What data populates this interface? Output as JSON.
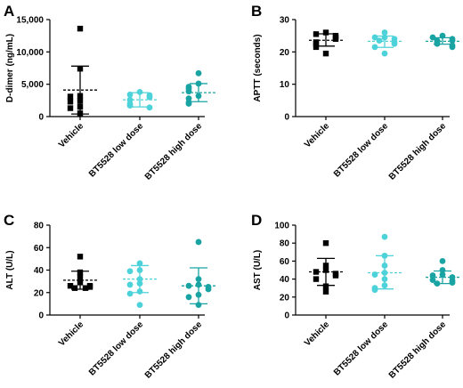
{
  "figure": {
    "group_colors": [
      "#000000",
      "#4dd2d9",
      "#1aa3a3"
    ],
    "group_markers": [
      "square",
      "circle",
      "circle"
    ]
  },
  "chart_data": [
    {
      "type": "scatter",
      "panel": "A",
      "categories": [
        "Vehicle",
        "BT5528 low dose",
        "BT5528 high dose"
      ],
      "ylabel": "D-dimer (ng/mL)",
      "ylim": [
        0,
        15000
      ],
      "yticks": [
        0,
        5000,
        10000,
        15000
      ],
      "ytick_labels": [
        "0",
        "5,000",
        "10,000",
        "15,000"
      ],
      "series": [
        {
          "points": [
            13600,
            7400,
            3200,
            3100,
            2400,
            2300,
            1500,
            1300,
            500
          ],
          "mean": 4100,
          "sd": [
            400,
            7800
          ]
        },
        {
          "points": [
            3800,
            3400,
            3300,
            3000,
            2600,
            2000,
            1700,
            1400
          ],
          "mean": 2600,
          "sd": [
            1500,
            3700
          ]
        },
        {
          "points": [
            6700,
            5100,
            4600,
            4300,
            3900,
            3200,
            2800,
            2200,
            2000
          ],
          "mean": 3700,
          "sd": [
            2300,
            5100
          ]
        }
      ]
    },
    {
      "type": "scatter",
      "panel": "B",
      "categories": [
        "Vehicle",
        "BT5528 low dose",
        "BT5528 high dose"
      ],
      "ylabel": "APTT (seconds)",
      "ylim": [
        0,
        30
      ],
      "yticks": [
        0,
        10,
        20,
        30
      ],
      "ytick_labels": [
        "0",
        "10",
        "20",
        "30"
      ],
      "series": [
        {
          "points": [
            26,
            25.5,
            25,
            24.5,
            24,
            23,
            22.5,
            21.5,
            19.5
          ],
          "mean": 23.6,
          "sd": [
            21.8,
            25.6
          ]
        },
        {
          "points": [
            26,
            24.5,
            24.5,
            24,
            23.5,
            23,
            22.5,
            21.5,
            19.5
          ],
          "mean": 23.3,
          "sd": [
            21.4,
            24.9
          ]
        },
        {
          "points": [
            25,
            24.5,
            24,
            23.5,
            23.5,
            23,
            22.5,
            22,
            21.5
          ],
          "mean": 23.3,
          "sd": [
            22.4,
            24.4
          ]
        }
      ]
    },
    {
      "type": "scatter",
      "panel": "C",
      "categories": [
        "Vehicle",
        "BT5528 low dose",
        "BT5528 high dose"
      ],
      "ylabel": "ALT (U/L)",
      "ylim": [
        0,
        80
      ],
      "yticks": [
        0,
        20,
        40,
        60,
        80
      ],
      "ytick_labels": [
        "0",
        "20",
        "40",
        "60",
        "80"
      ],
      "series": [
        {
          "points": [
            52,
            38,
            34,
            29,
            26,
            26,
            25,
            24,
            24
          ],
          "mean": 31,
          "sd": [
            23,
            39
          ]
        },
        {
          "points": [
            46,
            40,
            39,
            32,
            28,
            27,
            21,
            19,
            9
          ],
          "mean": 32,
          "sd": [
            20,
            44
          ]
        },
        {
          "points": [
            65,
            32,
            27,
            26,
            25,
            23,
            18,
            16,
            9
          ],
          "mean": 26,
          "sd": [
            10,
            42
          ]
        }
      ]
    },
    {
      "type": "scatter",
      "panel": "D",
      "categories": [
        "Vehicle",
        "BT5528 low dose",
        "BT5528 high dose"
      ],
      "ylabel": "AST (U/L)",
      "ylim": [
        0,
        100
      ],
      "yticks": [
        0,
        20,
        40,
        60,
        80,
        100
      ],
      "ytick_labels": [
        "0",
        "20",
        "40",
        "60",
        "80",
        "100"
      ],
      "series": [
        {
          "points": [
            80,
            55,
            50,
            48,
            46,
            44,
            40,
            32,
            26
          ],
          "mean": 48,
          "sd": [
            33,
            63
          ]
        },
        {
          "points": [
            87,
            66,
            55,
            47,
            45,
            40,
            33,
            30,
            28
          ],
          "mean": 47,
          "sd": [
            29,
            66
          ]
        },
        {
          "points": [
            60,
            50,
            45,
            44,
            42,
            39,
            38,
            36,
            35
          ],
          "mean": 42,
          "sd": [
            35,
            49
          ]
        }
      ]
    }
  ]
}
